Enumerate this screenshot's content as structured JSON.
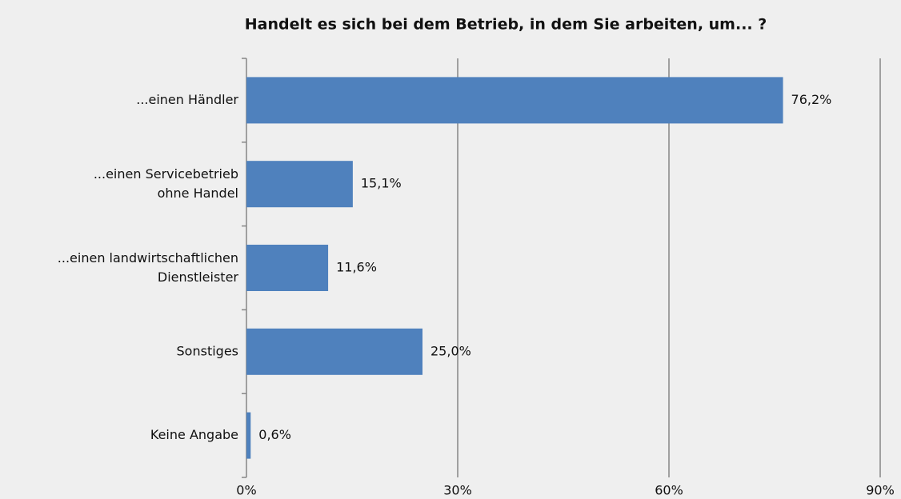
{
  "chart_data": {
    "type": "bar",
    "orientation": "horizontal",
    "title": "Handelt es sich bei dem Betrieb, in dem Sie arbeiten, um... ?",
    "categories": [
      "...einen Händler",
      "...einen Servicebetrieb\nohne Handel",
      "...einen landwirtschaftlichen\nDienstleister",
      "Sonstiges",
      "Keine Angabe"
    ],
    "values": [
      76.2,
      15.1,
      11.6,
      25.0,
      0.6
    ],
    "value_labels": [
      "76,2%",
      "15,1%",
      "11,6%",
      "25,0%",
      "0,6%"
    ],
    "color": "#4f81bd",
    "xlim": [
      0,
      90
    ],
    "xticks": [
      {
        "value": 0,
        "label": "0%"
      },
      {
        "value": 30,
        "label": "30%"
      },
      {
        "value": 60,
        "label": "60%"
      },
      {
        "value": 90,
        "label": "90%"
      }
    ],
    "grid": true
  }
}
